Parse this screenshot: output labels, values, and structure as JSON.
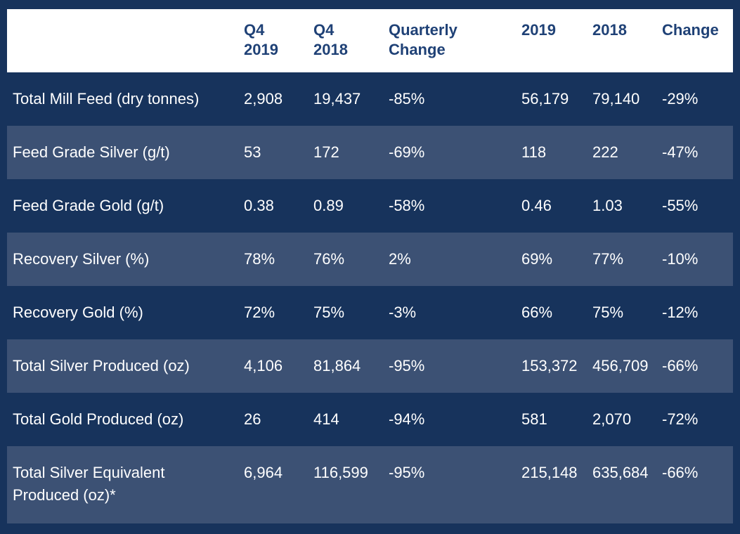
{
  "chart_data": {
    "type": "table",
    "column_headers": [
      "",
      "Q4\n2019",
      "Q4\n2018",
      "Quarterly\nChange",
      "2019",
      "2018",
      "Change"
    ],
    "rows": [
      {
        "label": "Total Mill Feed (dry tonnes)",
        "values": [
          "2,908",
          "19,437",
          "-85%",
          "56,179",
          "79,140",
          "-29%"
        ]
      },
      {
        "label": "Feed Grade Silver (g/t)",
        "values": [
          "53",
          "172",
          "-69%",
          "118",
          "222",
          "-47%"
        ]
      },
      {
        "label": "Feed Grade Gold (g/t)",
        "values": [
          "0.38",
          "0.89",
          "-58%",
          "0.46",
          "1.03",
          "-55%"
        ]
      },
      {
        "label": "Recovery Silver (%)",
        "values": [
          "78%",
          "76%",
          "2%",
          "69%",
          "77%",
          "-10%"
        ]
      },
      {
        "label": "Recovery Gold (%)",
        "values": [
          "72%",
          "75%",
          "-3%",
          "66%",
          "75%",
          "-12%"
        ]
      },
      {
        "label": "Total Silver Produced (oz)",
        "values": [
          "4,106",
          "81,864",
          "-95%",
          "153,372",
          "456,709",
          "-66%"
        ]
      },
      {
        "label": "Total Gold Produced (oz)",
        "values": [
          "26",
          "414",
          "-94%",
          "581",
          "2,070",
          "-72%"
        ]
      },
      {
        "label": "Total Silver Equivalent Produced (oz)*",
        "values": [
          "6,964",
          "116,599",
          "-95%",
          "215,148",
          "635,684",
          "-66%"
        ]
      }
    ],
    "layout_hints": {
      "header_background": "#ffffff",
      "header_text_color": "#1f4176",
      "row_dark_color": "#17335c",
      "row_light_color": "#3c5174",
      "body_text_color": "#ffffff"
    }
  }
}
